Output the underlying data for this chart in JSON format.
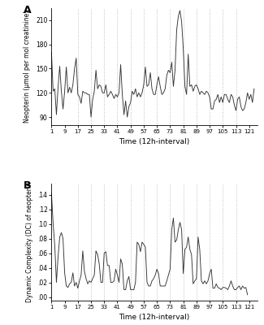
{
  "panel_A_label": "A",
  "panel_B_label": "B",
  "xlabel": "Time (12h-interval)",
  "ylabel_A": "Neopterin (μmol per mol creatinine)",
  "ylabel_B": "Dynamic Complexity (DC) of neopterin",
  "xlim": [
    1,
    126
  ],
  "xticks": [
    1,
    9,
    17,
    25,
    33,
    41,
    49,
    57,
    65,
    73,
    81,
    89,
    97,
    105,
    113,
    121
  ],
  "ylim_A": [
    80,
    225
  ],
  "yticks_A": [
    90,
    120,
    150,
    180,
    210
  ],
  "ylim_B": [
    -0.005,
    0.155
  ],
  "yticks_B": [
    0.0,
    0.02,
    0.04,
    0.06,
    0.08,
    0.1,
    0.12,
    0.14
  ],
  "vlines": [
    17,
    25,
    33,
    41,
    49,
    57,
    65,
    73,
    81,
    89,
    97,
    105,
    113
  ],
  "line_color": "#333333",
  "vline_color": "#bbbbbb",
  "background_color": "#ffffff",
  "series_A": [
    170,
    122,
    125,
    93,
    127,
    153,
    122,
    100,
    122,
    152,
    120,
    127,
    120,
    130,
    150,
    163,
    118,
    115,
    107,
    122,
    120,
    120,
    118,
    118,
    90,
    112,
    122,
    148,
    125,
    130,
    128,
    120,
    120,
    130,
    115,
    118,
    122,
    118,
    113,
    118,
    115,
    120,
    155,
    118,
    93,
    110,
    90,
    103,
    108,
    122,
    118,
    125,
    115,
    120,
    115,
    120,
    130,
    152,
    128,
    130,
    145,
    125,
    118,
    118,
    130,
    140,
    128,
    118,
    120,
    125,
    142,
    148,
    145,
    158,
    128,
    148,
    198,
    215,
    222,
    208,
    175,
    128,
    118,
    168,
    128,
    130,
    122,
    128,
    130,
    125,
    118,
    122,
    120,
    118,
    122,
    120,
    115,
    100,
    100,
    110,
    112,
    118,
    108,
    115,
    108,
    118,
    118,
    112,
    108,
    118,
    115,
    105,
    98,
    112,
    115,
    103,
    98,
    100,
    108,
    120,
    112,
    118,
    108,
    125
  ],
  "series_B": [
    0.142,
    0.1,
    0.07,
    0.02,
    0.055,
    0.082,
    0.088,
    0.08,
    0.033,
    0.015,
    0.013,
    0.018,
    0.02,
    0.033,
    0.015,
    0.02,
    0.012,
    0.022,
    0.03,
    0.063,
    0.035,
    0.025,
    0.018,
    0.022,
    0.02,
    0.025,
    0.03,
    0.063,
    0.058,
    0.045,
    0.02,
    0.02,
    0.06,
    0.062,
    0.043,
    0.043,
    0.02,
    0.02,
    0.022,
    0.038,
    0.03,
    0.02,
    0.052,
    0.045,
    0.01,
    0.01,
    0.022,
    0.028,
    0.01,
    0.01,
    0.01,
    0.02,
    0.075,
    0.072,
    0.062,
    0.075,
    0.072,
    0.068,
    0.02,
    0.015,
    0.015,
    0.022,
    0.025,
    0.03,
    0.038,
    0.032,
    0.015,
    0.015,
    0.015,
    0.015,
    0.022,
    0.03,
    0.038,
    0.092,
    0.108,
    0.075,
    0.078,
    0.092,
    0.102,
    0.092,
    0.032,
    0.065,
    0.068,
    0.082,
    0.065,
    0.058,
    0.018,
    0.022,
    0.025,
    0.082,
    0.065,
    0.022,
    0.018,
    0.022,
    0.018,
    0.022,
    0.032,
    0.038,
    0.012,
    0.012,
    0.018,
    0.013,
    0.012,
    0.01,
    0.013,
    0.013,
    0.012,
    0.01,
    0.015,
    0.022,
    0.015,
    0.01,
    0.01,
    0.013,
    0.015,
    0.01,
    0.015,
    0.012,
    0.013,
    0.003
  ]
}
